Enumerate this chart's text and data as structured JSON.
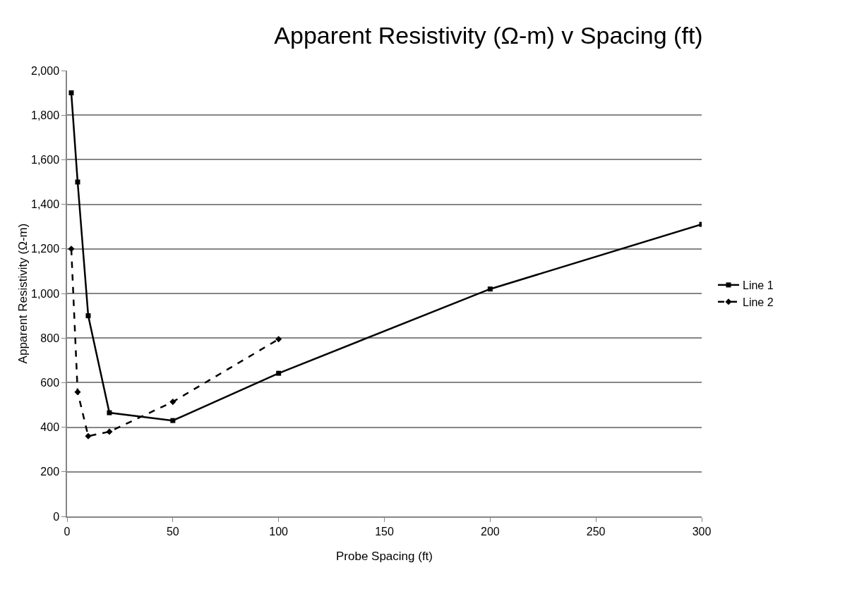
{
  "chart_data": {
    "type": "line",
    "title": "Apparent Resistivity (Ω-m) v Spacing (ft)",
    "xlabel": "Probe Spacing (ft)",
    "ylabel": "Apparent Resistivity (Ω-m)",
    "series": [
      {
        "name": "Line 1",
        "color": "#000000",
        "marker": "square",
        "line_style": "solid",
        "x": [
          2,
          5,
          10,
          20,
          50,
          100,
          200,
          300
        ],
        "values": [
          1900,
          1500,
          900,
          465,
          430,
          642,
          1020,
          1310
        ]
      },
      {
        "name": "Line 2",
        "color": "#000000",
        "marker": "diamond",
        "line_style": "dashed",
        "x": [
          2,
          5,
          10,
          20,
          50,
          100
        ],
        "values": [
          1200,
          558,
          360,
          380,
          514,
          795
        ]
      }
    ],
    "xlim": [
      0,
      300
    ],
    "xticks": [
      0,
      50,
      100,
      150,
      200,
      250,
      300
    ],
    "ylim": [
      0,
      2000
    ],
    "yticks": [
      {
        "value": 0,
        "label": "0"
      },
      {
        "value": 200,
        "label": "200"
      },
      {
        "value": 400,
        "label": "400"
      },
      {
        "value": 600,
        "label": "600"
      },
      {
        "value": 800,
        "label": "800"
      },
      {
        "value": 1000,
        "label": "1,000"
      },
      {
        "value": 1200,
        "label": "1,200"
      },
      {
        "value": 1400,
        "label": "1,400"
      },
      {
        "value": 1600,
        "label": "1,600"
      },
      {
        "value": 1800,
        "label": "1,800"
      },
      {
        "value": 2000,
        "label": "2,000"
      }
    ],
    "grid": "y",
    "legend": "right"
  }
}
